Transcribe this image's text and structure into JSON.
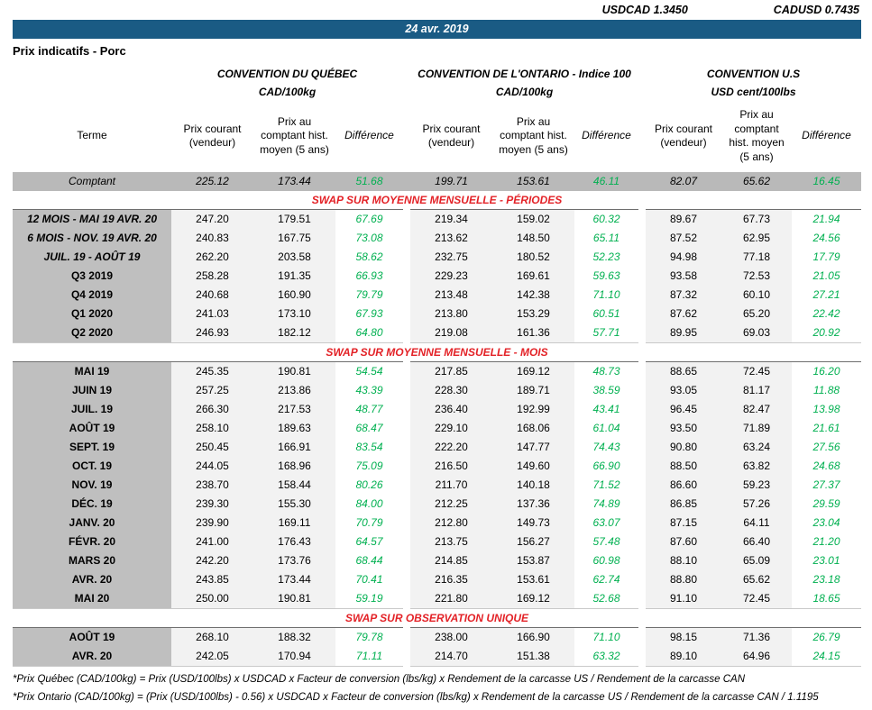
{
  "fx": {
    "usdcad_label": "USDCAD",
    "usdcad_value": "1.3450",
    "cadusd_label": "CADUSD",
    "cadusd_value": "0.7435"
  },
  "date_banner": "24 avr. 2019",
  "page_title": "Prix indicatifs - Porc",
  "conventions": [
    {
      "title": "CONVENTION DU QUÉBEC",
      "unit": "CAD/100kg"
    },
    {
      "title": "CONVENTION DE L'ONTARIO - Indice 100",
      "unit": "CAD/100kg"
    },
    {
      "title": "CONVENTION U.S",
      "unit": "USD cent/100lbs"
    }
  ],
  "column_headers": {
    "terme": "Terme",
    "prix_courant": "Prix courant (vendeur)",
    "prix_comptant": "Prix au comptant hist. moyen (5 ans)",
    "difference": "Différence"
  },
  "comptant_row": {
    "terme": "Comptant",
    "values": [
      "225.12",
      "173.44",
      "51.68",
      "199.71",
      "153.61",
      "46.11",
      "82.07",
      "65.62",
      "16.45"
    ]
  },
  "sections": [
    {
      "header": "SWAP SUR MOYENNE MENSUELLE - PÉRIODES",
      "rows": [
        {
          "terme": "12 MOIS -  MAI 19 AVR. 20",
          "italic": true,
          "values": [
            "247.20",
            "179.51",
            "67.69",
            "219.34",
            "159.02",
            "60.32",
            "89.67",
            "67.73",
            "21.94"
          ]
        },
        {
          "terme": "6 MOIS -  NOV. 19 AVR. 20",
          "italic": true,
          "values": [
            "240.83",
            "167.75",
            "73.08",
            "213.62",
            "148.50",
            "65.11",
            "87.52",
            "62.95",
            "24.56"
          ]
        },
        {
          "terme": "JUIL. 19 -  AOÛT 19",
          "italic": true,
          "values": [
            "262.20",
            "203.58",
            "58.62",
            "232.75",
            "180.52",
            "52.23",
            "94.98",
            "77.18",
            "17.79"
          ]
        },
        {
          "terme": "Q3 2019",
          "values": [
            "258.28",
            "191.35",
            "66.93",
            "229.23",
            "169.61",
            "59.63",
            "93.58",
            "72.53",
            "21.05"
          ]
        },
        {
          "terme": "Q4 2019",
          "values": [
            "240.68",
            "160.90",
            "79.79",
            "213.48",
            "142.38",
            "71.10",
            "87.32",
            "60.10",
            "27.21"
          ]
        },
        {
          "terme": "Q1 2020",
          "values": [
            "241.03",
            "173.10",
            "67.93",
            "213.80",
            "153.29",
            "60.51",
            "87.62",
            "65.20",
            "22.42"
          ]
        },
        {
          "terme": "Q2 2020",
          "values": [
            "246.93",
            "182.12",
            "64.80",
            "219.08",
            "161.36",
            "57.71",
            "89.95",
            "69.03",
            "20.92"
          ]
        }
      ]
    },
    {
      "header": "SWAP SUR MOYENNE MENSUELLE - MOIS",
      "rows": [
        {
          "terme": "MAI 19",
          "values": [
            "245.35",
            "190.81",
            "54.54",
            "217.85",
            "169.12",
            "48.73",
            "88.65",
            "72.45",
            "16.20"
          ]
        },
        {
          "terme": "JUIN 19",
          "values": [
            "257.25",
            "213.86",
            "43.39",
            "228.30",
            "189.71",
            "38.59",
            "93.05",
            "81.17",
            "11.88"
          ]
        },
        {
          "terme": "JUIL. 19",
          "values": [
            "266.30",
            "217.53",
            "48.77",
            "236.40",
            "192.99",
            "43.41",
            "96.45",
            "82.47",
            "13.98"
          ]
        },
        {
          "terme": "AOÛT 19",
          "values": [
            "258.10",
            "189.63",
            "68.47",
            "229.10",
            "168.06",
            "61.04",
            "93.50",
            "71.89",
            "21.61"
          ]
        },
        {
          "terme": "SEPT. 19",
          "values": [
            "250.45",
            "166.91",
            "83.54",
            "222.20",
            "147.77",
            "74.43",
            "90.80",
            "63.24",
            "27.56"
          ]
        },
        {
          "terme": "OCT. 19",
          "values": [
            "244.05",
            "168.96",
            "75.09",
            "216.50",
            "149.60",
            "66.90",
            "88.50",
            "63.82",
            "24.68"
          ]
        },
        {
          "terme": "NOV. 19",
          "values": [
            "238.70",
            "158.44",
            "80.26",
            "211.70",
            "140.18",
            "71.52",
            "86.60",
            "59.23",
            "27.37"
          ]
        },
        {
          "terme": "DÉC. 19",
          "values": [
            "239.30",
            "155.30",
            "84.00",
            "212.25",
            "137.36",
            "74.89",
            "86.85",
            "57.26",
            "29.59"
          ]
        },
        {
          "terme": "JANV. 20",
          "values": [
            "239.90",
            "169.11",
            "70.79",
            "212.80",
            "149.73",
            "63.07",
            "87.15",
            "64.11",
            "23.04"
          ]
        },
        {
          "terme": "FÉVR. 20",
          "values": [
            "241.00",
            "176.43",
            "64.57",
            "213.75",
            "156.27",
            "57.48",
            "87.60",
            "66.40",
            "21.20"
          ]
        },
        {
          "terme": "MARS 20",
          "values": [
            "242.20",
            "173.76",
            "68.44",
            "214.85",
            "153.87",
            "60.98",
            "88.10",
            "65.09",
            "23.01"
          ]
        },
        {
          "terme": "AVR. 20",
          "values": [
            "243.85",
            "173.44",
            "70.41",
            "216.35",
            "153.61",
            "62.74",
            "88.80",
            "65.62",
            "23.18"
          ]
        },
        {
          "terme": "MAI 20",
          "values": [
            "250.00",
            "190.81",
            "59.19",
            "221.80",
            "169.12",
            "52.68",
            "91.10",
            "72.45",
            "18.65"
          ]
        }
      ]
    },
    {
      "header": "SWAP SUR OBSERVATION UNIQUE",
      "rows": [
        {
          "terme": "AOÛT 19",
          "values": [
            "268.10",
            "188.32",
            "79.78",
            "238.00",
            "166.90",
            "71.10",
            "98.15",
            "71.36",
            "26.79"
          ]
        },
        {
          "terme": "AVR. 20",
          "values": [
            "242.05",
            "170.94",
            "71.11",
            "214.70",
            "151.38",
            "63.32",
            "89.10",
            "64.96",
            "24.15"
          ]
        }
      ]
    }
  ],
  "footnotes": [
    "*Prix Québec (CAD/100kg) = Prix (USD/100lbs) x USDCAD x Facteur de conversion (lbs/kg) x Rendement de la carcasse US / Rendement de la carcasse CAN",
    "*Prix Ontario (CAD/100kg) = (Prix (USD/100lbs) - 0.56) x USDCAD x Facteur de conversion (lbs/kg) x Rendement de la carcasse US / Rendement de la carcasse CAN / 1.1195"
  ],
  "colors": {
    "banner_blue": "#1A5B84",
    "section_red": "#E32227",
    "difference_green": "#00B050",
    "term_gray": "#BFBFBF",
    "comptant_gray": "#B9B9B9",
    "price_gray": "#F2F2F2"
  }
}
